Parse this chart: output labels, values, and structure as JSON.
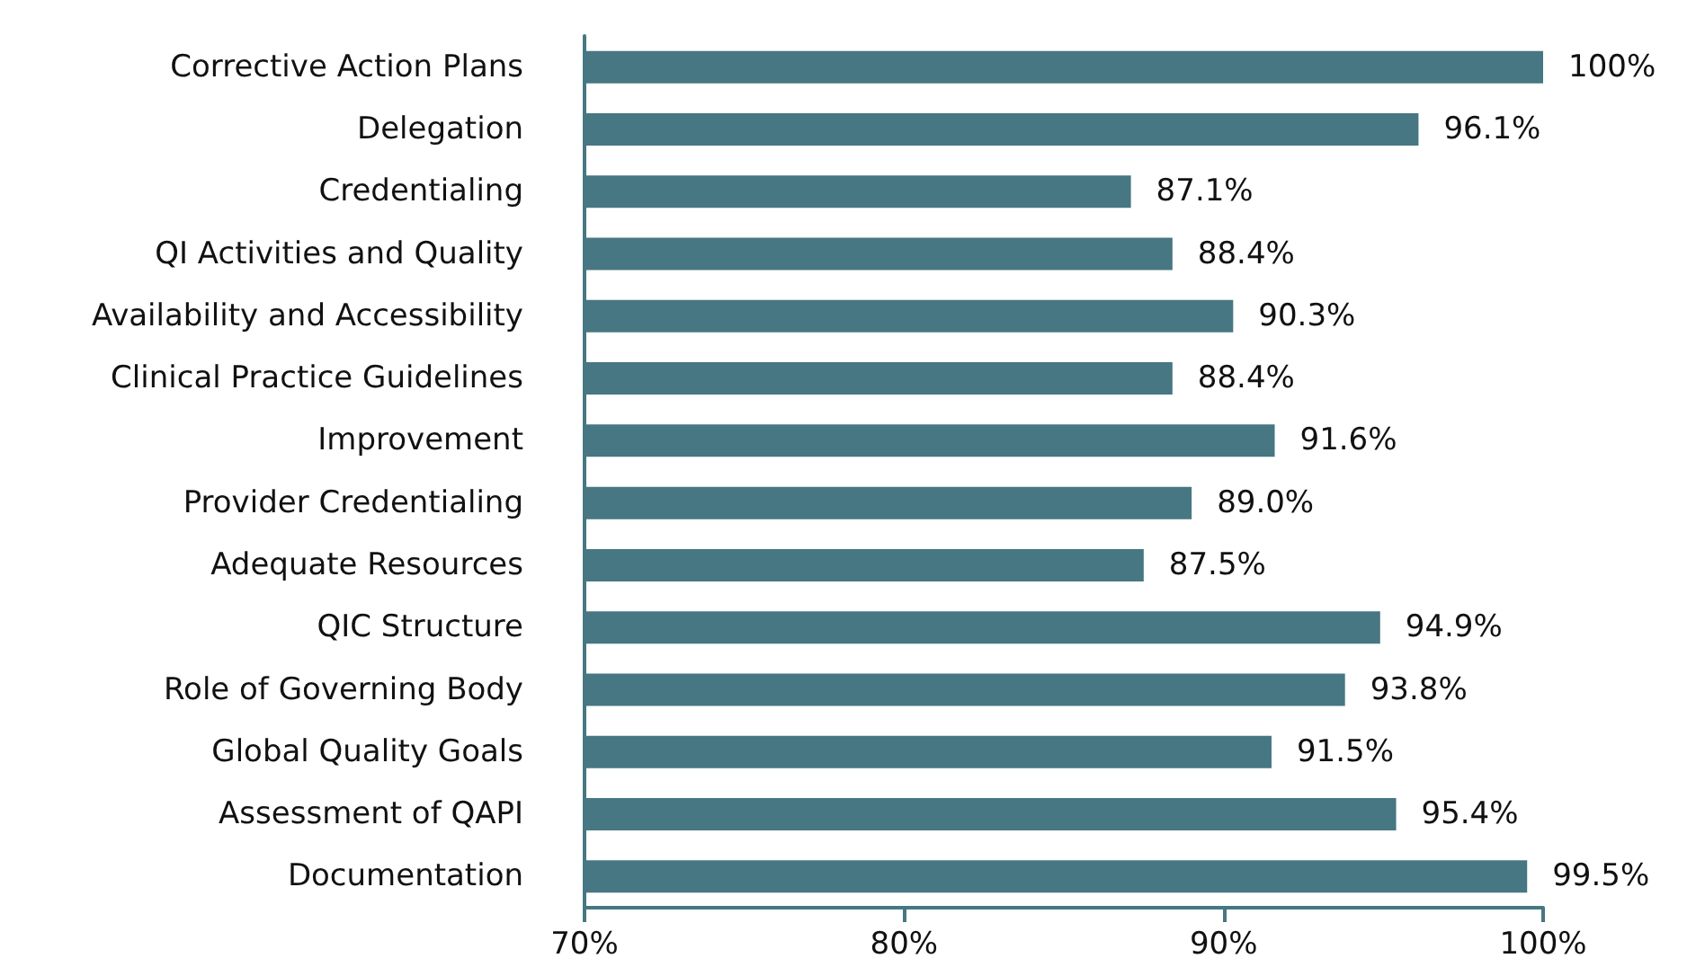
{
  "chart_data": {
    "type": "bar",
    "orientation": "horizontal",
    "categories": [
      "Corrective Action Plans",
      "Delegation",
      "Credentialing",
      "QI Activities and Quality",
      "Availability and Accessibility",
      "Clinical Practice Guidelines",
      "Improvement",
      "Provider Credentialing",
      "Adequate Resources",
      "QIC Structure",
      "Role of Governing Body",
      "Global Quality Goals",
      "Assessment of QAPI",
      "Documentation"
    ],
    "values": [
      100,
      96.1,
      87.1,
      88.4,
      90.3,
      88.4,
      91.6,
      89.0,
      87.5,
      94.9,
      93.8,
      91.5,
      95.4,
      99.5
    ],
    "value_labels": [
      "100%",
      "96.1%",
      "87.1%",
      "88.4%",
      "90.3%",
      "88.4%",
      "91.6%",
      "89.0%",
      "87.5%",
      "94.9%",
      "93.8%",
      "91.5%",
      "95.4%",
      "99.5%"
    ],
    "color": "#467782",
    "xlim": [
      70,
      100
    ],
    "xticks": [
      {
        "value": 70,
        "label": "70%"
      },
      {
        "value": 80,
        "label": "80%"
      },
      {
        "value": 90,
        "label": "90%"
      },
      {
        "value": 100,
        "label": "100%"
      }
    ]
  }
}
